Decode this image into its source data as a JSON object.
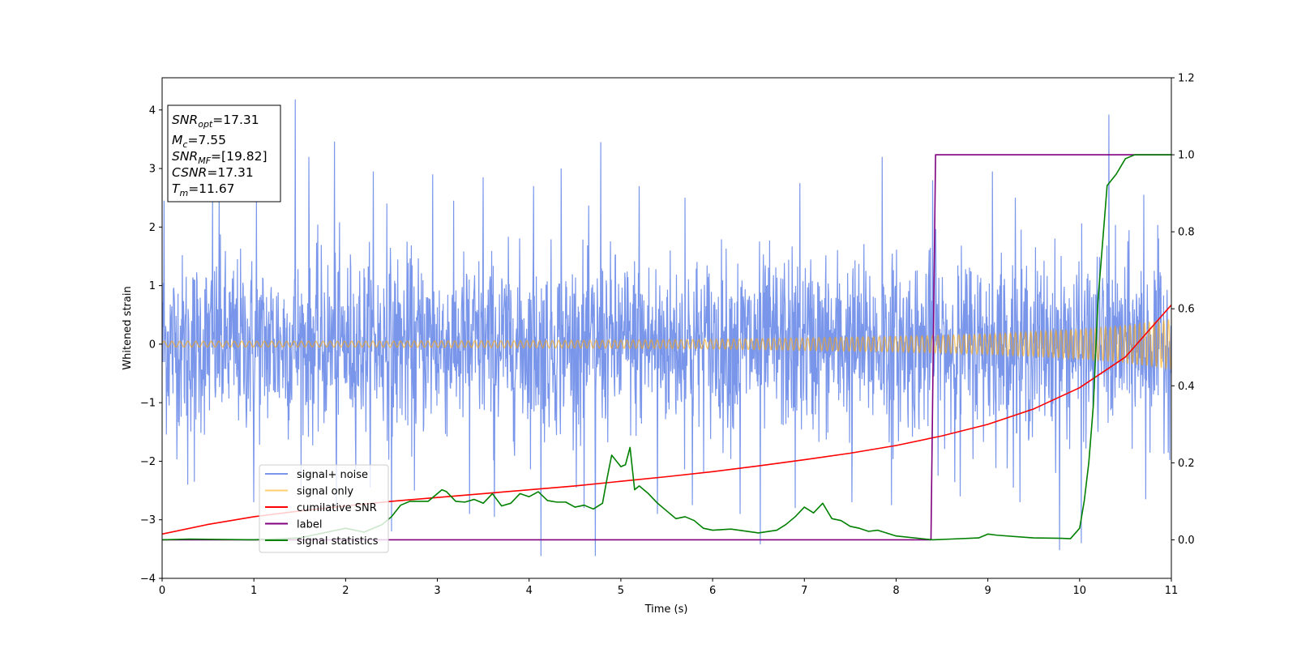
{
  "chart_data": {
    "type": "line",
    "xlabel": "Time (s)",
    "ylabel": "Whitened strain",
    "xlim": [
      0,
      11
    ],
    "ylim": [
      -4,
      4.55
    ],
    "y2lim": [
      -0.1,
      1.2
    ],
    "x_ticks": [
      0,
      1,
      2,
      3,
      4,
      5,
      6,
      7,
      8,
      9,
      10,
      11
    ],
    "y_ticks": [
      -4,
      -3,
      -2,
      -1,
      0,
      1,
      2,
      3,
      4
    ],
    "y2_ticks": [
      0.0,
      0.2,
      0.4,
      0.6,
      0.8,
      1.0,
      1.2
    ],
    "grid": false,
    "legend_position": "lower-left",
    "stats_box": {
      "lines": [
        {
          "sym": "SNR",
          "sub": "opt",
          "val": "=17.31"
        },
        {
          "sym": "M",
          "sub": "c",
          "val": "=7.55"
        },
        {
          "sym": "SNR",
          "sub": "MF",
          "val": "=[19.82]"
        },
        {
          "sym": "CSNR",
          "sub": "",
          "val": "=17.31"
        },
        {
          "sym": "T",
          "sub": "m",
          "val": "=11.67"
        }
      ]
    },
    "series": [
      {
        "name": "signal+ noise",
        "axis": "left",
        "color": "#4169e1",
        "opacity": 0.7,
        "kind": "noisy",
        "noise_sigma": 0.75,
        "spikes": [
          [
            0.02,
            2.45
          ],
          [
            0.55,
            2.5
          ],
          [
            0.62,
            2.6
          ],
          [
            1.03,
            2.45
          ],
          [
            1.45,
            4.18
          ],
          [
            1.6,
            3.2
          ],
          [
            1.88,
            3.46
          ],
          [
            2.3,
            2.95
          ],
          [
            2.45,
            2.4
          ],
          [
            2.95,
            2.9
          ],
          [
            3.5,
            2.85
          ],
          [
            4.05,
            2.7
          ],
          [
            4.35,
            3.0
          ],
          [
            4.78,
            3.45
          ],
          [
            5.2,
            2.7
          ],
          [
            5.7,
            2.5
          ],
          [
            6.3,
            2.65
          ],
          [
            6.95,
            2.75
          ],
          [
            7.85,
            3.2
          ],
          [
            8.4,
            2.8
          ],
          [
            9.05,
            2.95
          ],
          [
            9.3,
            2.5
          ],
          [
            10.32,
            3.92
          ],
          [
            10.7,
            2.55
          ],
          [
            0.28,
            -2.4
          ],
          [
            0.35,
            -2.35
          ],
          [
            1.0,
            -2.7
          ],
          [
            1.9,
            -2.75
          ],
          [
            2.5,
            -3.2
          ],
          [
            2.75,
            -2.5
          ],
          [
            3.35,
            -2.9
          ],
          [
            3.62,
            -2.95
          ],
          [
            4.13,
            -3.62
          ],
          [
            4.6,
            -2.8
          ],
          [
            4.72,
            -3.62
          ],
          [
            5.4,
            -2.9
          ],
          [
            5.78,
            -2.75
          ],
          [
            6.3,
            -2.9
          ],
          [
            6.52,
            -3.42
          ],
          [
            6.9,
            -2.8
          ],
          [
            7.52,
            -2.7
          ],
          [
            7.95,
            -2.75
          ],
          [
            8.7,
            -2.6
          ],
          [
            9.35,
            -2.7
          ],
          [
            9.78,
            -3.52
          ],
          [
            10.02,
            -3.4
          ],
          [
            10.72,
            -2.65
          ]
        ]
      },
      {
        "name": "signal only",
        "axis": "left",
        "color": "#ffa500",
        "opacity": 0.55,
        "kind": "chirp",
        "amplitude_x": [
          0,
          2,
          4,
          6,
          8,
          9,
          10,
          10.5,
          11
        ],
        "amplitude_y": [
          0.05,
          0.05,
          0.06,
          0.08,
          0.13,
          0.17,
          0.25,
          0.32,
          0.43
        ]
      },
      {
        "name": "cumilative SNR",
        "axis": "right",
        "color": "#ff0000",
        "x": [
          0,
          0.5,
          1,
          1.5,
          2,
          2.5,
          3,
          3.5,
          4,
          4.5,
          5,
          5.5,
          6,
          6.5,
          7,
          7.5,
          8,
          8.5,
          9,
          9.5,
          10,
          10.5,
          11
        ],
        "y": [
          0.015,
          0.04,
          0.06,
          0.075,
          0.088,
          0.1,
          0.11,
          0.12,
          0.13,
          0.14,
          0.152,
          0.164,
          0.177,
          0.192,
          0.208,
          0.225,
          0.245,
          0.27,
          0.3,
          0.34,
          0.395,
          0.475,
          0.61
        ]
      },
      {
        "name": "label",
        "axis": "right",
        "color": "#800080",
        "x": [
          0,
          8.38,
          8.43,
          11
        ],
        "y": [
          0,
          0,
          1,
          1
        ]
      },
      {
        "name": "signal statistics",
        "axis": "right",
        "color": "#008000",
        "x": [
          0,
          0.3,
          1,
          1.5,
          1.8,
          2.0,
          2.2,
          2.4,
          2.5,
          2.6,
          2.7,
          2.9,
          3.0,
          3.05,
          3.1,
          3.2,
          3.3,
          3.4,
          3.5,
          3.6,
          3.7,
          3.8,
          3.9,
          4.0,
          4.1,
          4.2,
          4.3,
          4.4,
          4.5,
          4.6,
          4.7,
          4.8,
          4.85,
          4.9,
          5.0,
          5.05,
          5.1,
          5.15,
          5.2,
          5.3,
          5.4,
          5.5,
          5.6,
          5.7,
          5.8,
          5.9,
          6.0,
          6.2,
          6.5,
          6.7,
          6.8,
          6.9,
          7.0,
          7.1,
          7.2,
          7.3,
          7.4,
          7.5,
          7.6,
          7.7,
          7.8,
          8.0,
          8.4,
          8.6,
          8.9,
          9.0,
          9.1,
          9.5,
          9.8,
          9.9,
          10.0,
          10.05,
          10.1,
          10.15,
          10.2,
          10.3,
          10.4,
          10.45,
          10.5,
          10.6,
          11.0
        ],
        "y": [
          0.0,
          0.002,
          0.0,
          0.005,
          0.02,
          0.03,
          0.02,
          0.04,
          0.06,
          0.09,
          0.1,
          0.1,
          0.12,
          0.13,
          0.125,
          0.1,
          0.098,
          0.105,
          0.095,
          0.12,
          0.088,
          0.095,
          0.12,
          0.112,
          0.125,
          0.102,
          0.098,
          0.098,
          0.085,
          0.09,
          0.08,
          0.095,
          0.16,
          0.22,
          0.19,
          0.195,
          0.24,
          0.13,
          0.14,
          0.12,
          0.095,
          0.075,
          0.055,
          0.06,
          0.05,
          0.03,
          0.025,
          0.028,
          0.018,
          0.025,
          0.04,
          0.06,
          0.085,
          0.07,
          0.095,
          0.055,
          0.05,
          0.035,
          0.03,
          0.022,
          0.025,
          0.01,
          0.0,
          0.002,
          0.005,
          0.015,
          0.012,
          0.005,
          0.004,
          0.003,
          0.03,
          0.1,
          0.2,
          0.35,
          0.62,
          0.92,
          0.95,
          0.97,
          0.99,
          1.0,
          1.0
        ]
      }
    ]
  }
}
